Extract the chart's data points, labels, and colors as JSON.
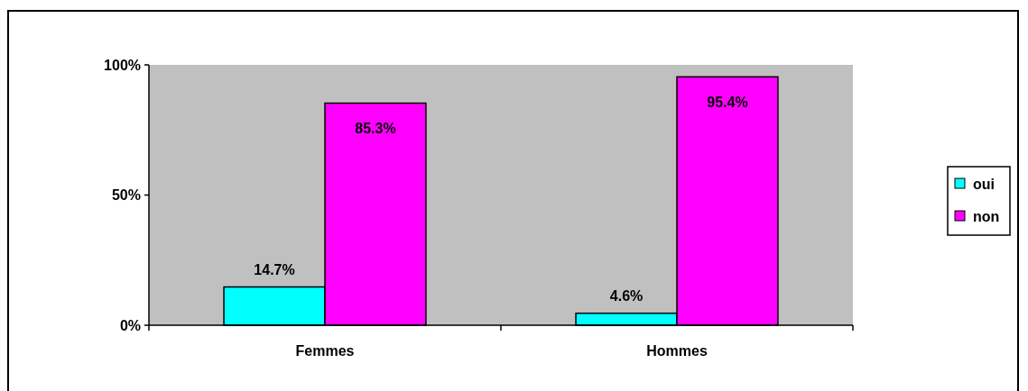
{
  "chart_data": {
    "type": "bar",
    "categories": [
      "Femmes",
      "Hommes"
    ],
    "series": [
      {
        "name": "oui",
        "color": "#00ffff",
        "values": [
          14.7,
          4.6
        ],
        "value_labels": [
          "14.7%",
          "4.6%"
        ]
      },
      {
        "name": "non",
        "color": "#ff00ff",
        "values": [
          85.3,
          95.4
        ],
        "value_labels": [
          "85.3%",
          "95.4%"
        ]
      }
    ],
    "ylim": [
      0,
      100
    ],
    "yticks": [
      {
        "value": 0,
        "label": "0%"
      },
      {
        "value": 50,
        "label": "50%"
      },
      {
        "value": 100,
        "label": "100%"
      }
    ],
    "legend": "right"
  }
}
